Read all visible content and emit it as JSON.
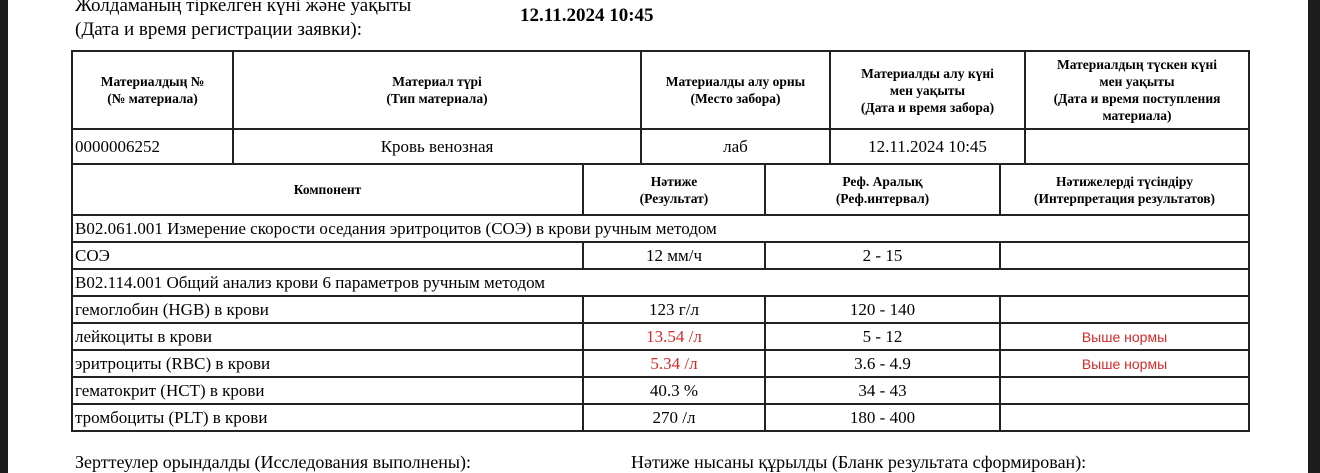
{
  "registration": {
    "label_kz": "Жолдаманың тіркелген күні және уақыты",
    "label_ru": "(Дата и время регистрации заявки):",
    "value": "12.11.2024 10:45"
  },
  "material_table": {
    "headers": [
      [
        "Материалдың №",
        "(№ материала)"
      ],
      [
        "Материал түрі",
        "(Тип материала)"
      ],
      [
        "Материалды алу орны",
        "(Место забора)"
      ],
      [
        "Материалды алу күні",
        "мен уақыты",
        "(Дата и время забора)"
      ],
      [
        "Материалдың түскен күні",
        "мен уақыты",
        "(Дата и время поступления",
        "материала)"
      ]
    ],
    "row": {
      "number": "0000006252",
      "type": "Кровь венозная",
      "place": "лаб",
      "collected": "12.11.2024 10:45",
      "received": ""
    }
  },
  "results_table": {
    "headers": [
      [
        "Компонент"
      ],
      [
        "Нәтиже",
        "(Результат)"
      ],
      [
        "Реф. Аралық",
        "(Реф.интервал)"
      ],
      [
        "Нәтижелерді түсіндіру",
        "(Интерпретация результатов)"
      ]
    ],
    "groups": [
      {
        "title": "В02.061.001 Измерение скорости оседания эритроцитов (СОЭ) в крови ручным методом",
        "rows": [
          {
            "component": "СОЭ",
            "result": "12 мм/ч",
            "ref": "2 - 15",
            "interp": "",
            "abnormal": false
          }
        ]
      },
      {
        "title": "В02.114.001 Общий анализ крови 6 параметров ручным методом",
        "rows": [
          {
            "component": "гемоглобин (HGB) в крови",
            "result": "123 г/л",
            "ref": "120 - 140",
            "interp": "",
            "abnormal": false
          },
          {
            "component": "лейкоциты в крови",
            "result": "13.54 /л",
            "ref": "5 - 12",
            "interp": "Выше нормы",
            "abnormal": true
          },
          {
            "component": "эритроциты (RBC) в крови",
            "result": "5.34 /л",
            "ref": "3.6 - 4.9",
            "interp": "Выше нормы",
            "abnormal": true
          },
          {
            "component": "гематокрит (HCT) в крови",
            "result": "40.3 %",
            "ref": "34 - 43",
            "interp": "",
            "abnormal": false
          },
          {
            "component": "тромбоциты (PLT) в крови",
            "result": "270 /л",
            "ref": "180 - 400",
            "interp": "",
            "abnormal": false
          }
        ]
      }
    ]
  },
  "footer": {
    "performed": "Зерттеулер орындалды (Исследования выполнены):",
    "formed": "Нәтиже нысаны құрылды (Бланк результата сформирован):"
  },
  "colors": {
    "abnormal": "#d42a2a"
  }
}
